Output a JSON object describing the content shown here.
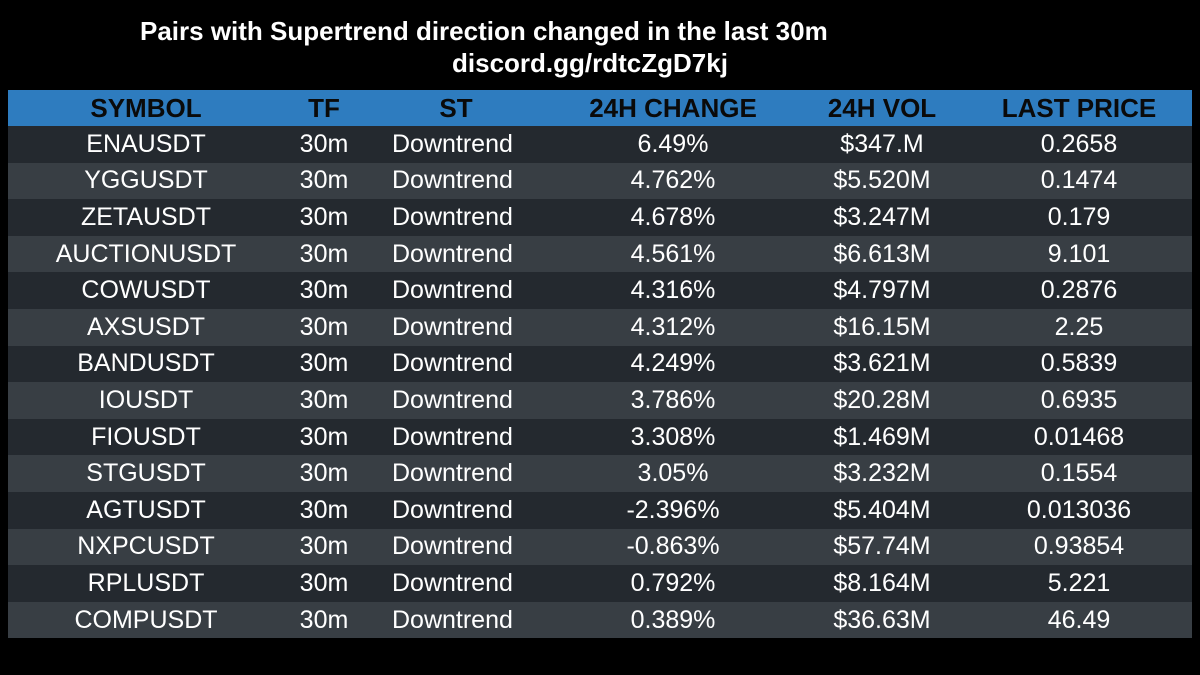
{
  "title": "Pairs with Supertrend direction changed in the last 30m",
  "subtitle": "discord.gg/rdtcZgD7kj",
  "colors": {
    "background": "#000000",
    "header": "#2e7cbf",
    "row_dark": "#24292f",
    "row_light": "#383e44"
  },
  "table": {
    "headers": [
      "SYMBOL",
      "TF",
      "ST",
      "24H CHANGE",
      "24H VOL",
      "LAST PRICE"
    ],
    "rows": [
      [
        "ENAUSDT",
        "30m",
        "Downtrend",
        "6.49%",
        "$347.M",
        "0.2658"
      ],
      [
        "YGGUSDT",
        "30m",
        "Downtrend",
        "4.762%",
        "$5.520M",
        "0.1474"
      ],
      [
        "ZETAUSDT",
        "30m",
        "Downtrend",
        "4.678%",
        "$3.247M",
        "0.179"
      ],
      [
        "AUCTIONUSDT",
        "30m",
        "Downtrend",
        "4.561%",
        "$6.613M",
        "9.101"
      ],
      [
        "COWUSDT",
        "30m",
        "Downtrend",
        "4.316%",
        "$4.797M",
        "0.2876"
      ],
      [
        "AXSUSDT",
        "30m",
        "Downtrend",
        "4.312%",
        "$16.15M",
        "2.25"
      ],
      [
        "BANDUSDT",
        "30m",
        "Downtrend",
        "4.249%",
        "$3.621M",
        "0.5839"
      ],
      [
        "IOUSDT",
        "30m",
        "Downtrend",
        "3.786%",
        "$20.28M",
        "0.6935"
      ],
      [
        "FIOUSDT",
        "30m",
        "Downtrend",
        "3.308%",
        "$1.469M",
        "0.01468"
      ],
      [
        "STGUSDT",
        "30m",
        "Downtrend",
        "3.05%",
        "$3.232M",
        "0.1554"
      ],
      [
        "AGTUSDT",
        "30m",
        "Downtrend",
        "-2.396%",
        "$5.404M",
        "0.013036"
      ],
      [
        "NXPCUSDT",
        "30m",
        "Downtrend",
        "-0.863%",
        "$57.74M",
        "0.93854"
      ],
      [
        "RPLUSDT",
        "30m",
        "Downtrend",
        "0.792%",
        "$8.164M",
        "5.221"
      ],
      [
        "COMPUSDT",
        "30m",
        "Downtrend",
        "0.389%",
        "$36.63M",
        "46.49"
      ]
    ]
  }
}
